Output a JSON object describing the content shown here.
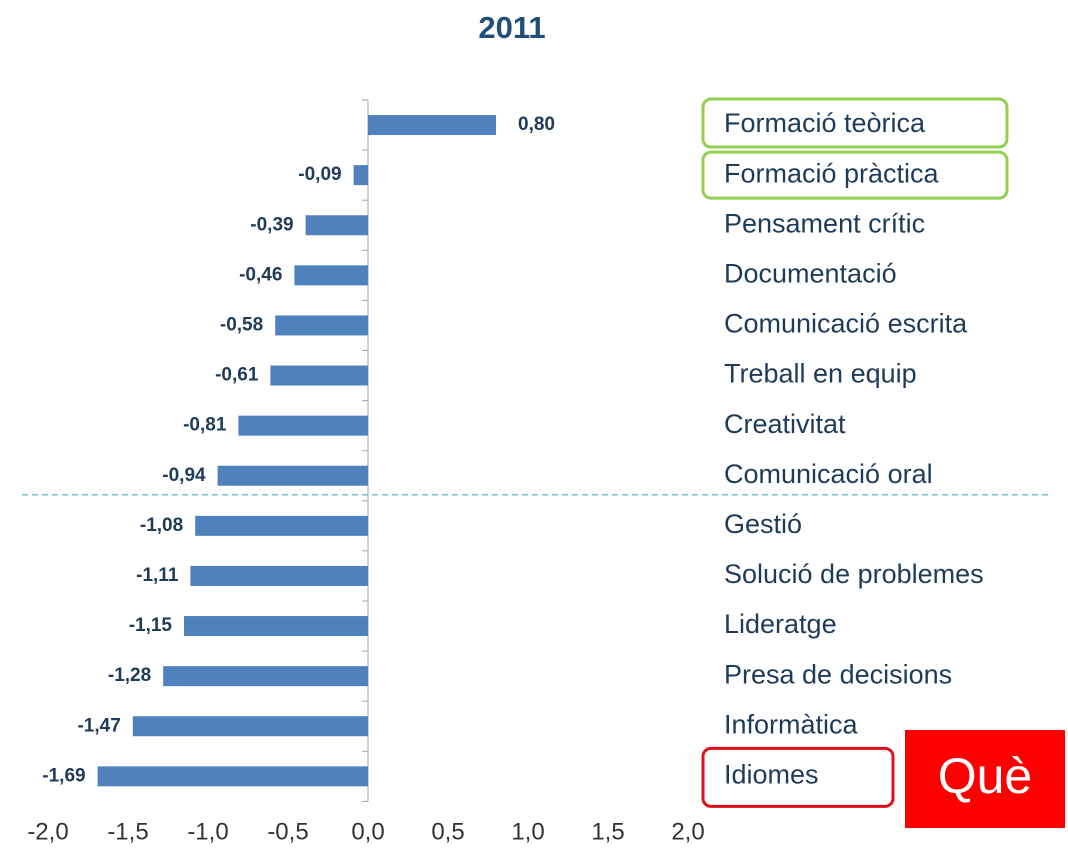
{
  "chart_data": {
    "type": "bar",
    "orientation": "horizontal",
    "title": "2011",
    "categories": [
      "Formació teòrica",
      "Formació pràctica",
      "Pensament crític",
      "Documentació",
      "Comunicació escrita",
      "Treball en equip",
      "Creativitat",
      "Comunicació oral",
      "Gestió",
      "Solució de problemes",
      "Lideratge",
      "Presa de decisions",
      "Informàtica",
      "Idiomes"
    ],
    "values": [
      0.8,
      -0.09,
      -0.39,
      -0.46,
      -0.58,
      -0.61,
      -0.81,
      -0.94,
      -1.08,
      -1.11,
      -1.15,
      -1.28,
      -1.47,
      -1.69
    ],
    "value_labels": [
      "0,80",
      "-0,09",
      "-0,39",
      "-0,46",
      "-0,58",
      "-0,61",
      "-0,81",
      "-0,94",
      "-1,08",
      "-1,11",
      "-1,15",
      "-1,28",
      "-1,47",
      "-1,69"
    ],
    "color": "#4f81bd",
    "xlim": [
      -2.0,
      2.0
    ],
    "xticks": [
      {
        "value": -2.0,
        "label": "-2,0"
      },
      {
        "value": -1.5,
        "label": "-1,5"
      },
      {
        "value": -1.0,
        "label": "-1,0"
      },
      {
        "value": -0.5,
        "label": "-0,5"
      },
      {
        "value": 0.0,
        "label": "0,0"
      },
      {
        "value": 0.5,
        "label": "0,5"
      },
      {
        "value": 1.0,
        "label": "1,0"
      },
      {
        "value": 1.5,
        "label": "1,5"
      },
      {
        "value": 2.0,
        "label": "2,0"
      }
    ],
    "annotation": "Què"
  }
}
